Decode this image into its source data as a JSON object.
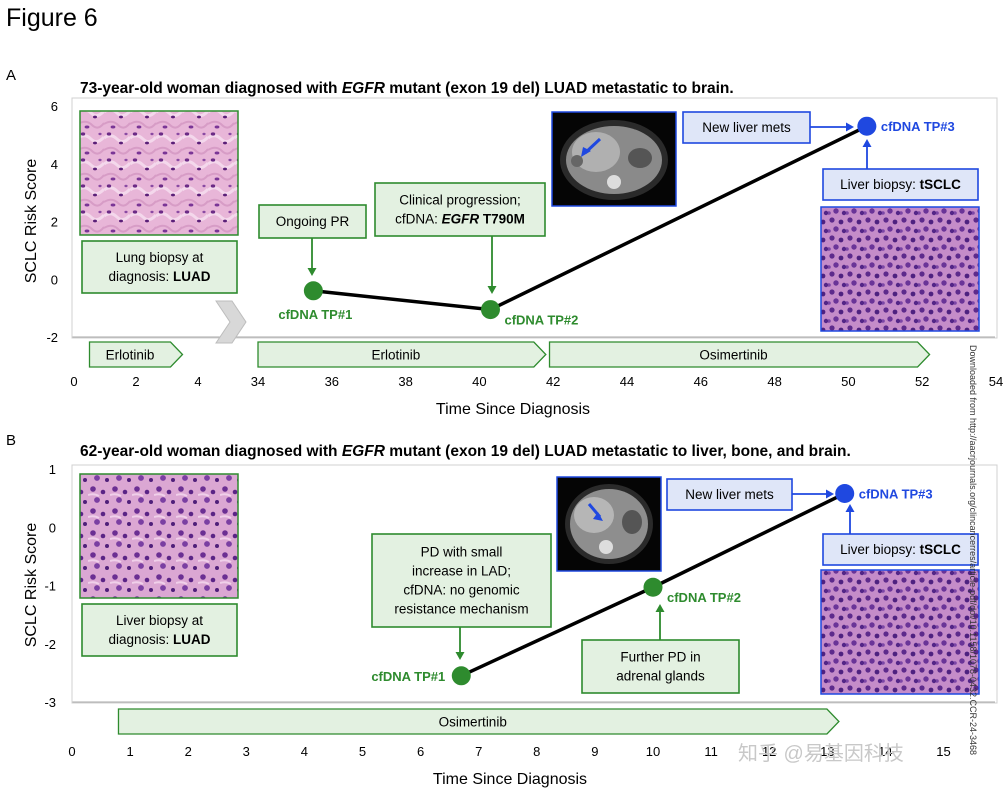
{
  "figure_title": "Figure 6",
  "side_text": "Downloaded from http://aacrjournals.org/clincancerres/article-pdf/doi/10.1158/1078-0432.CCR-24-3468",
  "watermark": "知乎 @易基因科技",
  "colors": {
    "green_dark": "#2e8b2e",
    "green_fill": "#e3f1e1",
    "blue": "#1f48e0",
    "blue_fill": "#dfe6f8",
    "line": "#000000",
    "bar_fill": "#e3f1e1",
    "bar_stroke": "#2e8b2e",
    "gap_arrow": "#d8d8d8"
  },
  "chart_data": [
    {
      "type": "line",
      "panel_label": "A",
      "title_parts": [
        {
          "text": "73-year-old woman diagnosed with ",
          "italic": false
        },
        {
          "text": "EGFR",
          "italic": true
        },
        {
          "text": " mutant (exon 19 del) LUAD metastatic to brain.",
          "italic": false
        }
      ],
      "ylabel": "SCLC Risk Score",
      "xlabel": "Time Since Diagnosis",
      "ylim": [
        -2,
        6
      ],
      "yticks": [
        "6",
        "4",
        "2",
        "0",
        "-2"
      ],
      "axis_break": true,
      "xticks_left": [
        "0",
        "2",
        "4"
      ],
      "xticks_right": [
        "34",
        "36",
        "38",
        "40",
        "42",
        "44",
        "46",
        "48",
        "50",
        "52",
        "54"
      ],
      "points": [
        {
          "x": 35.5,
          "y": -0.4,
          "label": "cfDNA TP#1",
          "color": "green"
        },
        {
          "x": 40.3,
          "y": -1.05,
          "label": "cfDNA TP#2",
          "color": "green"
        },
        {
          "x": 50.5,
          "y": 5.3,
          "label": "cfDNA TP#3",
          "color": "blue"
        }
      ],
      "treatments": [
        {
          "label": "Erlotinib",
          "start": 0.5,
          "end": 3.5,
          "segment": "left"
        },
        {
          "label": "Erlotinib",
          "start": 34,
          "end": 41.8,
          "segment": "right"
        },
        {
          "label": "Osimertinib",
          "start": 41.9,
          "end": 52.2,
          "segment": "right"
        }
      ],
      "callouts": [
        {
          "lines": [
            [
              {
                "t": "Lung biopsy at"
              }
            ],
            [
              {
                "t": "diagnosis: "
              },
              {
                "t": "LUAD",
                "b": true
              }
            ]
          ]
        },
        {
          "lines": [
            [
              {
                "t": "Ongoing PR"
              }
            ]
          ]
        },
        {
          "lines": [
            [
              {
                "t": "Clinical progression;"
              }
            ],
            [
              {
                "t": "cfDNA: "
              },
              {
                "t": "EGFR",
                "b": true,
                "i": true
              },
              {
                "t": " T790M",
                "b": true
              }
            ]
          ]
        },
        {
          "lines": [
            [
              {
                "t": "New liver mets"
              }
            ]
          ]
        },
        {
          "lines": [
            [
              {
                "t": "Liver biopsy: "
              },
              {
                "t": "tSCLC",
                "b": true
              }
            ]
          ]
        }
      ]
    },
    {
      "type": "line",
      "panel_label": "B",
      "title_parts": [
        {
          "text": "62-year-old woman diagnosed with ",
          "italic": false
        },
        {
          "text": "EGFR",
          "italic": true
        },
        {
          "text": " mutant (exon 19 del) LUAD metastatic to liver, bone, and brain.",
          "italic": false
        }
      ],
      "ylabel": "SCLC Risk Score",
      "xlabel": "Time Since Diagnosis",
      "ylim": [
        -3,
        1
      ],
      "yticks": [
        "1",
        "0",
        "-1",
        "-2",
        "-3"
      ],
      "xticks": [
        "0",
        "1",
        "2",
        "3",
        "4",
        "5",
        "6",
        "7",
        "8",
        "9",
        "10",
        "11",
        "12",
        "13",
        "14",
        "15"
      ],
      "points": [
        {
          "x": 6.7,
          "y": -2.55,
          "label": "cfDNA TP#1",
          "color": "green"
        },
        {
          "x": 10.0,
          "y": -1.03,
          "label": "cfDNA TP#2",
          "color": "green"
        },
        {
          "x": 13.3,
          "y": 0.58,
          "label": "cfDNA TP#3",
          "color": "blue"
        }
      ],
      "treatments": [
        {
          "label": "Osimertinib",
          "start": 0.8,
          "end": 13.2
        }
      ],
      "callouts": [
        {
          "lines": [
            [
              {
                "t": "Liver biopsy at"
              }
            ],
            [
              {
                "t": "diagnosis: "
              },
              {
                "t": "LUAD",
                "b": true
              }
            ]
          ]
        },
        {
          "lines": [
            [
              {
                "t": "PD with small"
              }
            ],
            [
              {
                "t": "increase in LAD;"
              }
            ],
            [
              {
                "t": "cfDNA: no genomic"
              }
            ],
            [
              {
                "t": "resistance mechanism"
              }
            ]
          ]
        },
        {
          "lines": [
            [
              {
                "t": "Further PD in"
              }
            ],
            [
              {
                "t": "adrenal glands"
              }
            ]
          ]
        },
        {
          "lines": [
            [
              {
                "t": "New liver mets"
              }
            ]
          ]
        },
        {
          "lines": [
            [
              {
                "t": "Liver biopsy: "
              },
              {
                "t": "tSCLC",
                "b": true
              }
            ]
          ]
        }
      ]
    }
  ]
}
